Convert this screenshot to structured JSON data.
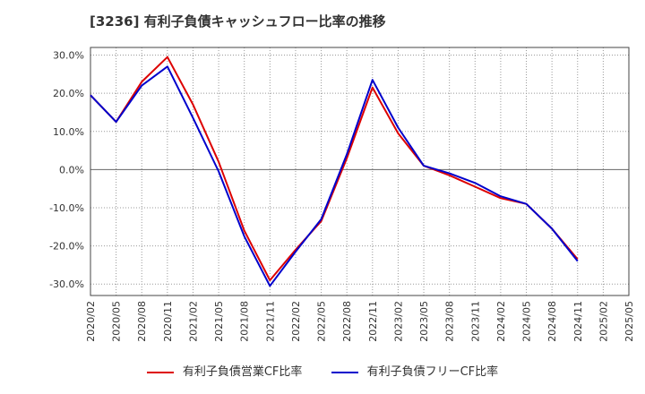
{
  "chart_data": {
    "type": "line",
    "title": "[3236]  有利子負債キャッシュフロー比率の推移",
    "x": [
      "2020/02",
      "2020/05",
      "2020/08",
      "2020/11",
      "2021/02",
      "2021/05",
      "2021/08",
      "2021/11",
      "2022/02",
      "2022/05",
      "2022/08",
      "2022/11",
      "2023/02",
      "2023/05",
      "2023/08",
      "2023/11",
      "2024/02",
      "2024/05",
      "2024/08",
      "2024/11",
      "2025/02",
      "2025/05"
    ],
    "yticks": [
      "30.0%",
      "20.0%",
      "10.0%",
      "0.0%",
      "-10.0%",
      "-20.0%",
      "-30.0%"
    ],
    "ylim": [
      -33,
      32
    ],
    "grid": true,
    "legend_position": "bottom",
    "series": [
      {
        "name": "有利子負債営業CF比率",
        "color": "#dd0000",
        "values": [
          19.5,
          12.5,
          23.0,
          29.5,
          17.0,
          2.0,
          -16.0,
          -29.0,
          -21.0,
          -13.5,
          3.0,
          21.5,
          9.5,
          1.0,
          -1.5,
          -4.5,
          -7.5,
          -9.0,
          -15.5,
          -23.5,
          null,
          null
        ]
      },
      {
        "name": "有利子負債フリーCF比率",
        "color": "#0000cc",
        "values": [
          19.5,
          12.5,
          22.0,
          27.0,
          13.5,
          -0.5,
          -17.5,
          -30.5,
          -21.5,
          -13.0,
          4.0,
          23.5,
          11.0,
          1.0,
          -1.0,
          -3.5,
          -7.0,
          -9.0,
          -15.5,
          -24.0,
          null,
          null
        ]
      }
    ]
  }
}
